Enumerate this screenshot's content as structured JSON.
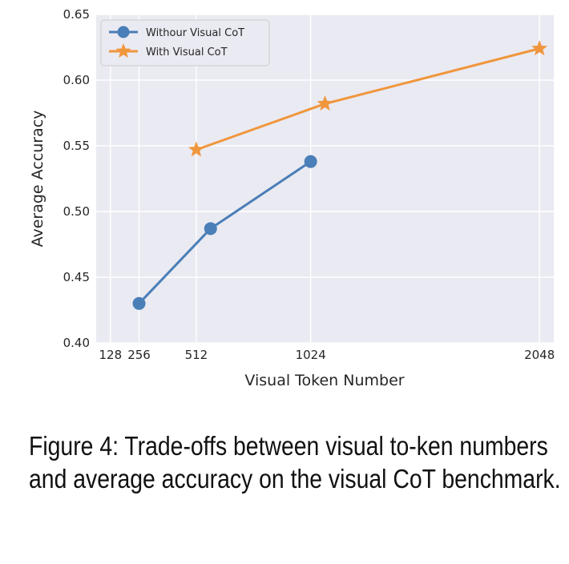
{
  "chart_data": {
    "type": "line",
    "xlabel": "Visual Token Number",
    "ylabel": "Average Accuracy",
    "xlim": [
      64,
      2112
    ],
    "ylim": [
      0.4,
      0.65
    ],
    "xticks": [
      128,
      256,
      512,
      1024,
      2048
    ],
    "yticks": [
      0.4,
      0.45,
      0.5,
      0.55,
      0.6,
      0.65
    ],
    "ytick_labels": [
      "0.40",
      "0.45",
      "0.50",
      "0.55",
      "0.60",
      "0.65"
    ],
    "grid": true,
    "legend_position": "top-left",
    "series": [
      {
        "name": "Withour Visual CoT",
        "color": "#4a7fb8",
        "marker": "circle",
        "x": [
          256,
          576,
          1024
        ],
        "y": [
          0.43,
          0.487,
          0.538
        ]
      },
      {
        "name": "With Visual CoT",
        "color": "#f0963c",
        "marker": "star",
        "x": [
          512,
          1088,
          2048
        ],
        "y": [
          0.547,
          0.582,
          0.624
        ]
      }
    ]
  },
  "caption": "Figure 4: Trade-offs between visual to-ken numbers and average accuracy on the visual CoT benchmark."
}
